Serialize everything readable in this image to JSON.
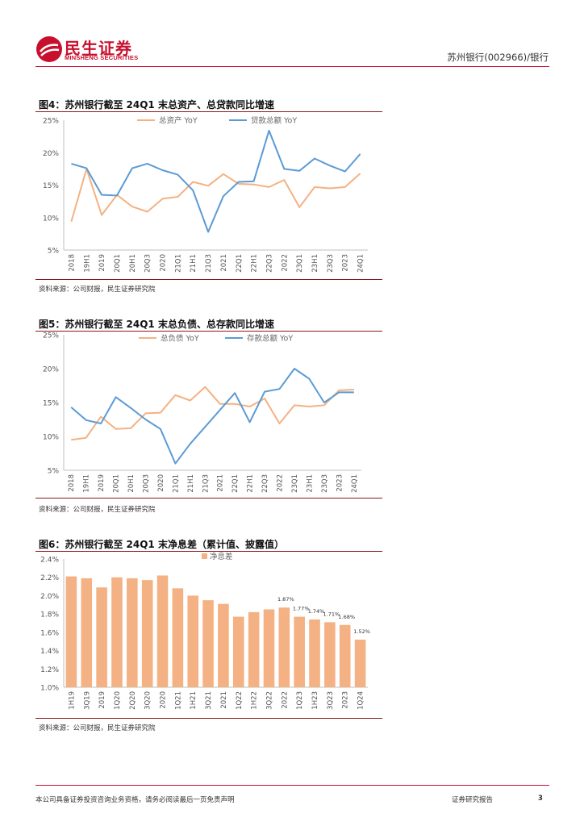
{
  "header": {
    "logo_cn": "民生证券",
    "logo_en": "MINSHENG SECURITIES",
    "company": "苏州银行(002966)/银行"
  },
  "figures": [
    {
      "title": "图4：苏州银行截至 24Q1 末总资产、总贷款同比增速",
      "source": "资料来源：公司财报，民生证券研究院"
    },
    {
      "title": "图5：苏州银行截至 24Q1 末总负债、总存款同比增速",
      "source": "资料来源：公司财报，民生证券研究院"
    },
    {
      "title": "图6：苏州银行截至 24Q1 末净息差（累计值、披露值）",
      "source": "资料来源：公司财报，民生证券研究院"
    }
  ],
  "chart_data": [
    {
      "type": "line",
      "categories": [
        "2018",
        "19H1",
        "2019",
        "20Q1",
        "20H1",
        "20Q3",
        "2020",
        "21Q1",
        "21H1",
        "21Q3",
        "2021",
        "22Q1",
        "22H1",
        "22Q3",
        "2022",
        "23Q1",
        "23H1",
        "23Q3",
        "2023",
        "24Q1"
      ],
      "series": [
        {
          "name": "总资产 YoY",
          "color": "#f4b183",
          "values": [
            9.4,
            17.5,
            10.4,
            13.5,
            11.7,
            10.9,
            12.9,
            13.2,
            15.5,
            14.9,
            16.7,
            15.2,
            15.1,
            14.7,
            15.8,
            11.6,
            14.7,
            14.5,
            14.7,
            16.8
          ]
        },
        {
          "name": "贷款总额 YoY",
          "color": "#5b9bd5",
          "values": [
            18.3,
            17.6,
            13.5,
            13.4,
            17.6,
            18.3,
            17.3,
            16.6,
            14.2,
            7.8,
            13.3,
            15.5,
            15.6,
            23.4,
            17.5,
            17.2,
            19.1,
            18.0,
            17.1,
            19.8
          ]
        }
      ],
      "ylim": [
        5,
        25
      ],
      "yticks": [
        "5%",
        "10%",
        "15%",
        "20%",
        "25%"
      ],
      "grid": false,
      "legend": "top"
    },
    {
      "type": "line",
      "categories": [
        "2018",
        "19H1",
        "2019",
        "20Q1",
        "20H1",
        "20Q3",
        "2020",
        "21Q1",
        "21H1",
        "21Q3",
        "2021",
        "22Q1",
        "22H1",
        "22Q3",
        "2022",
        "23Q1",
        "23H1",
        "23Q3",
        "2023",
        "24Q1"
      ],
      "series": [
        {
          "name": "总负债 YoY",
          "color": "#f4b183",
          "values": [
            9.5,
            9.8,
            12.9,
            11.1,
            11.2,
            13.4,
            13.5,
            16.1,
            15.3,
            17.3,
            14.8,
            14.8,
            14.4,
            15.6,
            11.9,
            14.6,
            14.4,
            14.6,
            16.8,
            16.9
          ]
        },
        {
          "name": "存款总额 YoY",
          "color": "#5b9bd5",
          "values": [
            14.3,
            12.4,
            11.9,
            15.8,
            14.2,
            12.5,
            11.1,
            6.0,
            8.9,
            11.4,
            13.9,
            16.4,
            12.1,
            16.6,
            17.0,
            20.0,
            18.5,
            15.0,
            16.5,
            16.5
          ]
        }
      ],
      "ylim": [
        5,
        25
      ],
      "yticks": [
        "5%",
        "10%",
        "15%",
        "20%",
        "25%"
      ],
      "grid": false,
      "legend": "top"
    },
    {
      "type": "bar",
      "categories": [
        "1H19",
        "3Q19",
        "2019",
        "1Q20",
        "2Q20",
        "3Q20",
        "2020",
        "1Q21",
        "1H21",
        "3Q21",
        "2021",
        "1Q22",
        "1H22",
        "3Q22",
        "2022",
        "1Q23",
        "1H23",
        "3Q23",
        "2023",
        "1Q24"
      ],
      "series": [
        {
          "name": "净息差",
          "color": "#f4b183",
          "values": [
            2.21,
            2.19,
            2.09,
            2.2,
            2.19,
            2.17,
            2.22,
            2.08,
            2.0,
            1.95,
            1.91,
            1.77,
            1.82,
            1.85,
            1.87,
            1.77,
            1.74,
            1.71,
            1.68,
            1.52
          ]
        }
      ],
      "data_labels": {
        "14": "1.87%",
        "15": "1.77%",
        "16": "1.74%",
        "17": "1.71%",
        "18": "1.68%",
        "19": "1.52%"
      },
      "ylim": [
        1.0,
        2.4
      ],
      "yticks": [
        "1.0%",
        "1.2%",
        "1.4%",
        "1.6%",
        "1.8%",
        "2.0%",
        "2.2%",
        "2.4%"
      ],
      "grid": false,
      "legend": "top"
    }
  ],
  "footer": {
    "disclaimer": "本公司具备证券投资咨询业务资格，请务必阅读最后一页免责声明",
    "report_type": "证券研究报告",
    "page": "3"
  }
}
